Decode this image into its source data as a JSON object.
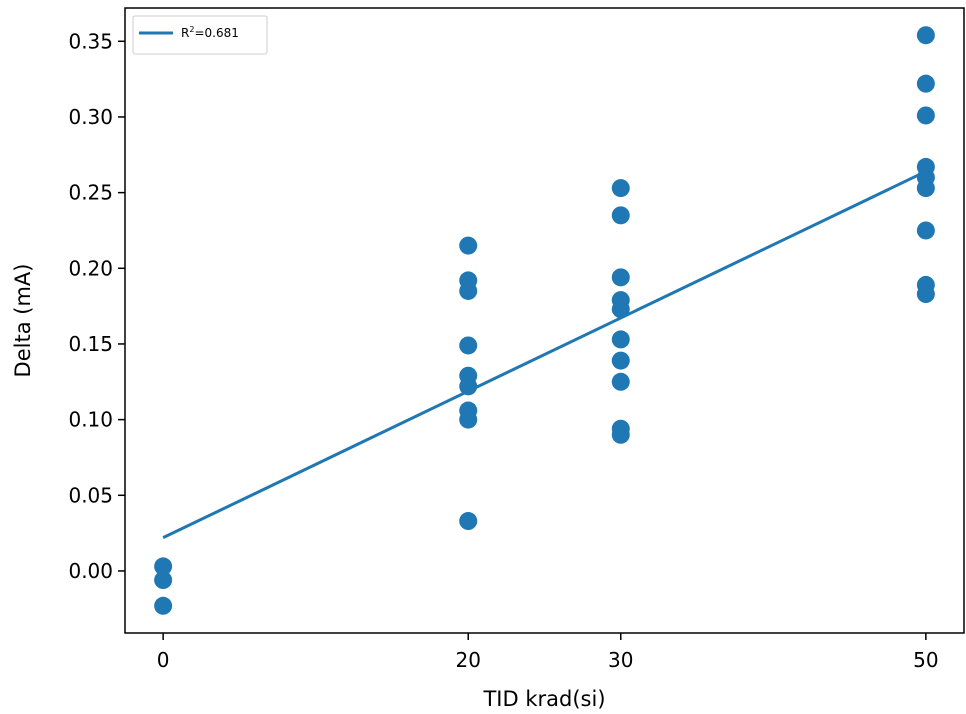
{
  "chart_data": {
    "type": "scatter",
    "xlabel": "TID krad(si)",
    "ylabel": "Delta (mA)",
    "x_ticks": [
      0,
      20,
      30,
      50
    ],
    "y_ticks": [
      0.0,
      0.05,
      0.1,
      0.15,
      0.2,
      0.25,
      0.3,
      0.35
    ],
    "xlim": [
      -2.5,
      52.5
    ],
    "ylim": [
      -0.041,
      0.372
    ],
    "grid": false,
    "legend_position": "top-left",
    "color": "#1f77b4",
    "points": [
      {
        "x": 0,
        "y": 0.003
      },
      {
        "x": 0,
        "y": -0.006
      },
      {
        "x": 0,
        "y": -0.023
      },
      {
        "x": 20,
        "y": 0.215
      },
      {
        "x": 20,
        "y": 0.192
      },
      {
        "x": 20,
        "y": 0.185
      },
      {
        "x": 20,
        "y": 0.149
      },
      {
        "x": 20,
        "y": 0.129
      },
      {
        "x": 20,
        "y": 0.122
      },
      {
        "x": 20,
        "y": 0.106
      },
      {
        "x": 20,
        "y": 0.1
      },
      {
        "x": 20,
        "y": 0.033
      },
      {
        "x": 30,
        "y": 0.253
      },
      {
        "x": 30,
        "y": 0.235
      },
      {
        "x": 30,
        "y": 0.194
      },
      {
        "x": 30,
        "y": 0.179
      },
      {
        "x": 30,
        "y": 0.173
      },
      {
        "x": 30,
        "y": 0.153
      },
      {
        "x": 30,
        "y": 0.139
      },
      {
        "x": 30,
        "y": 0.125
      },
      {
        "x": 30,
        "y": 0.094
      },
      {
        "x": 30,
        "y": 0.09
      },
      {
        "x": 50,
        "y": 0.354
      },
      {
        "x": 50,
        "y": 0.322
      },
      {
        "x": 50,
        "y": 0.301
      },
      {
        "x": 50,
        "y": 0.267
      },
      {
        "x": 50,
        "y": 0.26
      },
      {
        "x": 50,
        "y": 0.253
      },
      {
        "x": 50,
        "y": 0.225
      },
      {
        "x": 50,
        "y": 0.189
      },
      {
        "x": 50,
        "y": 0.183
      }
    ],
    "fit_line": {
      "label_main": "R",
      "label_sup": "2",
      "label_rest": "=0.681",
      "x": [
        0,
        50
      ],
      "y": [
        0.022,
        0.264
      ]
    }
  }
}
